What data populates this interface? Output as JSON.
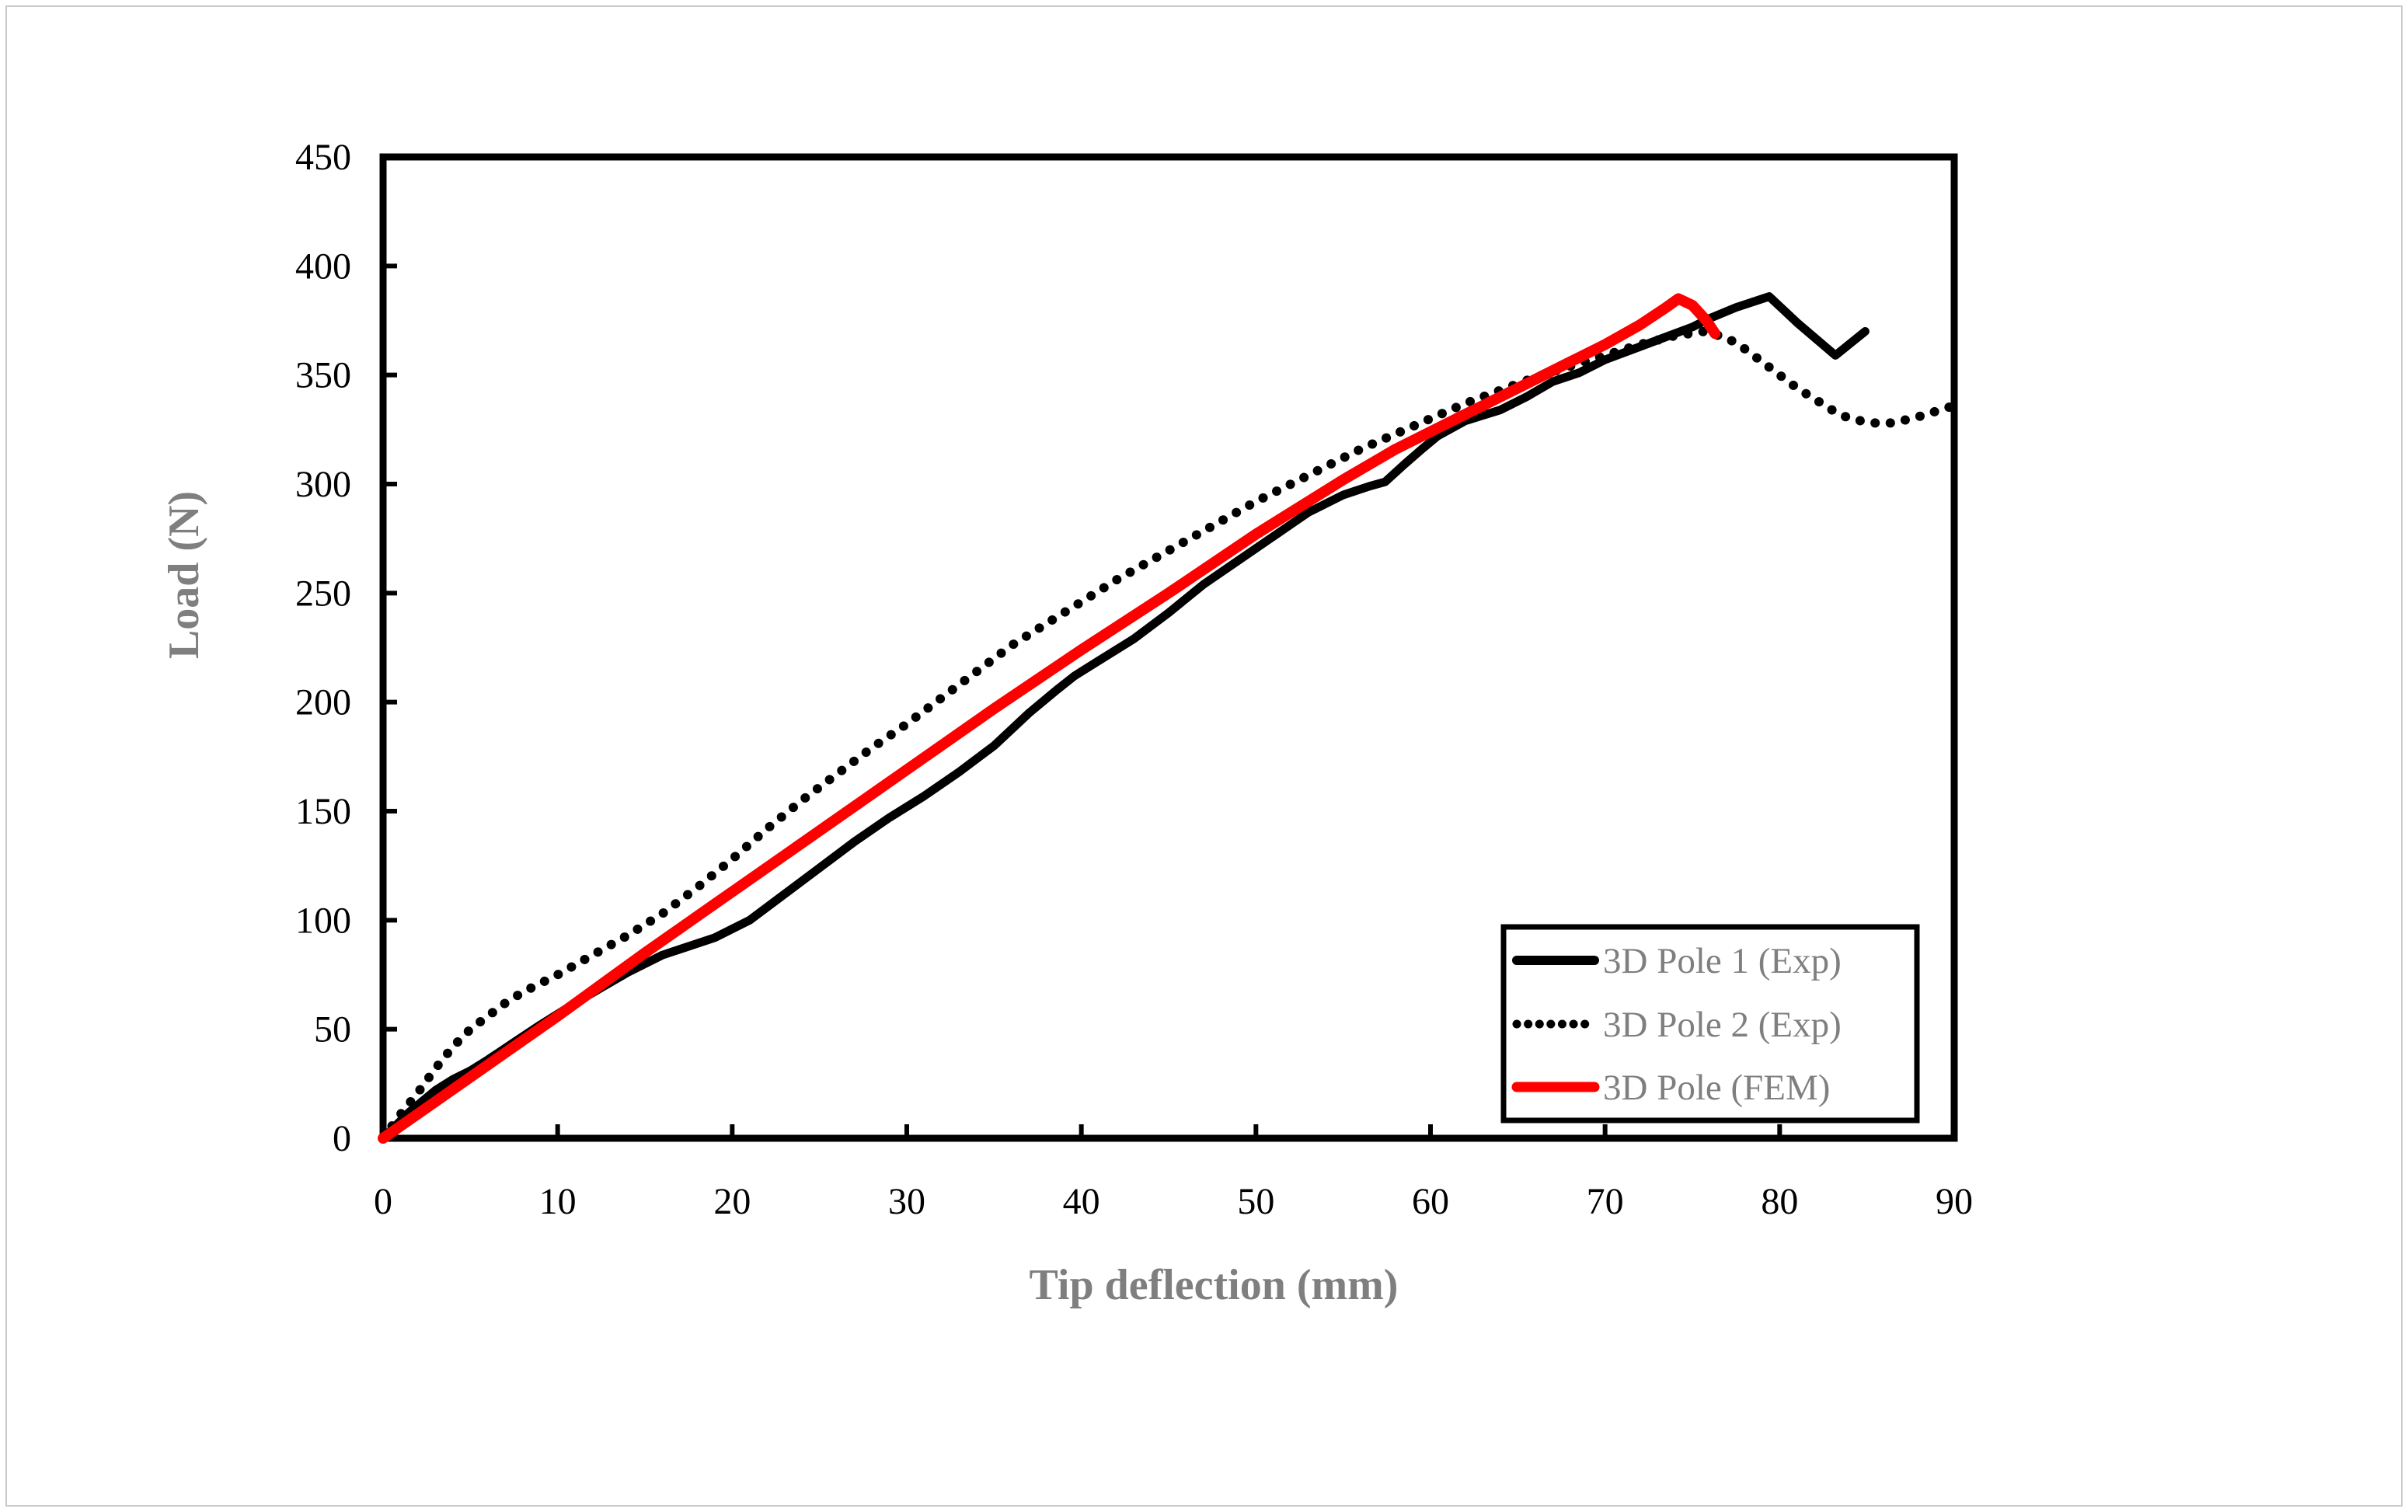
{
  "chart_data": {
    "type": "line",
    "title": "",
    "xlabel": "Tip deflection (mm)",
    "ylabel": "Load (N)",
    "xlim": [
      0,
      90
    ],
    "ylim": [
      0,
      450
    ],
    "x_ticks": [
      0,
      10,
      20,
      30,
      40,
      50,
      60,
      70,
      80,
      90
    ],
    "y_ticks": [
      0,
      50,
      100,
      150,
      200,
      250,
      300,
      350,
      400,
      450
    ],
    "grid": false,
    "legend_position": "inside lower right",
    "series": [
      {
        "name": "3D Pole 1 (Exp)",
        "style": "solid",
        "color": "#000000",
        "points": [
          [
            0,
            0
          ],
          [
            1.5,
            12
          ],
          [
            3,
            22
          ],
          [
            4,
            27
          ],
          [
            5,
            31
          ],
          [
            6,
            36
          ],
          [
            7.5,
            44
          ],
          [
            9,
            52
          ],
          [
            10,
            57
          ],
          [
            11,
            62
          ],
          [
            12.5,
            69
          ],
          [
            14,
            76
          ],
          [
            16,
            84
          ],
          [
            17.5,
            88
          ],
          [
            19,
            92
          ],
          [
            20,
            96
          ],
          [
            21,
            100
          ],
          [
            23,
            112
          ],
          [
            25,
            124
          ],
          [
            27,
            136
          ],
          [
            29,
            147
          ],
          [
            31,
            157
          ],
          [
            33,
            168
          ],
          [
            35,
            180
          ],
          [
            37,
            195
          ],
          [
            38.5,
            205
          ],
          [
            39.6,
            212
          ],
          [
            41,
            219
          ],
          [
            43,
            229
          ],
          [
            45,
            241
          ],
          [
            47,
            254
          ],
          [
            49,
            265
          ],
          [
            51,
            276
          ],
          [
            53,
            287
          ],
          [
            55,
            295
          ],
          [
            56.5,
            299
          ],
          [
            57.4,
            301
          ],
          [
            58.5,
            309
          ],
          [
            59.5,
            316
          ],
          [
            60.4,
            322
          ],
          [
            62,
            329
          ],
          [
            64,
            334
          ],
          [
            65.5,
            340
          ],
          [
            67,
            347
          ],
          [
            68.5,
            351
          ],
          [
            70,
            357
          ],
          [
            72,
            363
          ],
          [
            74,
            369
          ],
          [
            75,
            372
          ],
          [
            76,
            376
          ],
          [
            77.5,
            381
          ],
          [
            79.4,
            386
          ],
          [
            81,
            374
          ],
          [
            83.2,
            359
          ],
          [
            84.9,
            370
          ]
        ]
      },
      {
        "name": "3D Pole 2 (Exp)",
        "style": "dotted",
        "color": "#000000",
        "points": [
          [
            0,
            0
          ],
          [
            1,
            11
          ],
          [
            2,
            21
          ],
          [
            3,
            32
          ],
          [
            4,
            42
          ],
          [
            5,
            50
          ],
          [
            6,
            56
          ],
          [
            7,
            62
          ],
          [
            8,
            67
          ],
          [
            9,
            71
          ],
          [
            10,
            75
          ],
          [
            12,
            84
          ],
          [
            14,
            93
          ],
          [
            16,
            103
          ],
          [
            18,
            115
          ],
          [
            20,
            128
          ],
          [
            22,
            142
          ],
          [
            24,
            155
          ],
          [
            26,
            167
          ],
          [
            28,
            179
          ],
          [
            30,
            190
          ],
          [
            32,
            202
          ],
          [
            34,
            214
          ],
          [
            36,
            226
          ],
          [
            38,
            236
          ],
          [
            40,
            246
          ],
          [
            42,
            256
          ],
          [
            44,
            265
          ],
          [
            46,
            274
          ],
          [
            48,
            283
          ],
          [
            50,
            292
          ],
          [
            52,
            300
          ],
          [
            54,
            308
          ],
          [
            56,
            316
          ],
          [
            58,
            323
          ],
          [
            60,
            330
          ],
          [
            62,
            337
          ],
          [
            64,
            343
          ],
          [
            66,
            349
          ],
          [
            68,
            354
          ],
          [
            70,
            359
          ],
          [
            72,
            364
          ],
          [
            74,
            368
          ],
          [
            75.7,
            370
          ],
          [
            77,
            367
          ],
          [
            78,
            362
          ],
          [
            79,
            356
          ],
          [
            80,
            350
          ],
          [
            81,
            344
          ],
          [
            82,
            339
          ],
          [
            83,
            334
          ],
          [
            84,
            330
          ],
          [
            85.3,
            328
          ],
          [
            86.5,
            328
          ],
          [
            88,
            331
          ],
          [
            89.2,
            334
          ],
          [
            90,
            336
          ]
        ]
      },
      {
        "name": "3D Pole (FEM)",
        "style": "solid",
        "color": "#FF0000",
        "points": [
          [
            0,
            0
          ],
          [
            5,
            28
          ],
          [
            10,
            56
          ],
          [
            15,
            85
          ],
          [
            20,
            113
          ],
          [
            25,
            141
          ],
          [
            30,
            169
          ],
          [
            35,
            197
          ],
          [
            40,
            224
          ],
          [
            45,
            250
          ],
          [
            50,
            277
          ],
          [
            55,
            302
          ],
          [
            58,
            316
          ],
          [
            60,
            324
          ],
          [
            62,
            332
          ],
          [
            64,
            340
          ],
          [
            66,
            348
          ],
          [
            68,
            356
          ],
          [
            70,
            364
          ],
          [
            72,
            373
          ],
          [
            73.5,
            381
          ],
          [
            74.2,
            385
          ],
          [
            75,
            382
          ],
          [
            75.8,
            375
          ],
          [
            76.3,
            369
          ]
        ]
      }
    ]
  },
  "axis": {
    "x_title": "Tip deflection (mm)",
    "y_title": "Load (N)"
  },
  "legend": {
    "entries": [
      {
        "label": "3D Pole 1 (Exp)",
        "line": "solid-black"
      },
      {
        "label": "3D Pole 2 (Exp)",
        "line": "dotted-black"
      },
      {
        "label": "3D Pole (FEM)",
        "line": "solid-red"
      }
    ]
  },
  "colors": {
    "series_black": "#000000",
    "series_red": "#FF0000",
    "axis_line": "#000000",
    "tick_label": "#000000",
    "title_gray": "#7F7F7F",
    "legend_text_gray": "#7F7F7F",
    "page_frame": "#C9C9C9",
    "background": "#FFFFFF"
  }
}
